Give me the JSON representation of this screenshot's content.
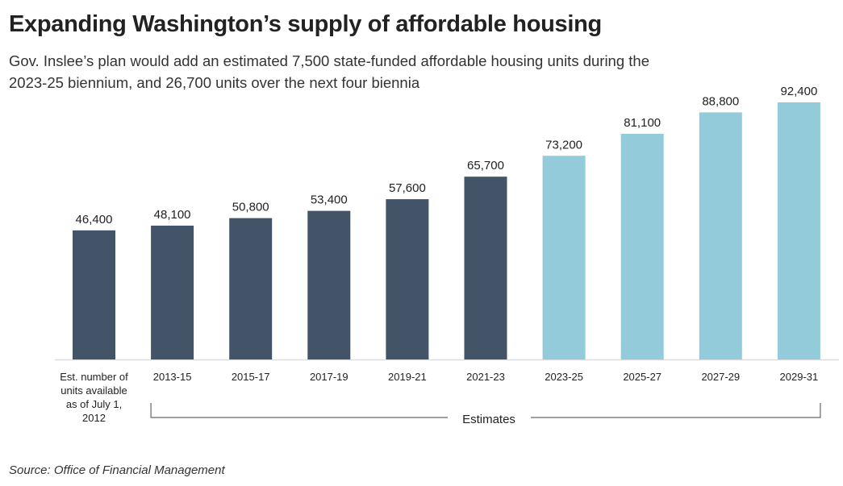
{
  "chart_data": {
    "type": "bar",
    "title": "Expanding Washington’s supply of affordable housing",
    "subtitle": "Gov. Inslee’s plan would add an estimated 7,500 state-funded affordable housing units during the 2023-25 biennium, and 26,700 units over the next four biennia",
    "categories": [
      "Est. number of units available as of July 1, 2012",
      "2013-15",
      "2015-17",
      "2017-19",
      "2019-21",
      "2021-23",
      "2023-25",
      "2025-27",
      "2027-29",
      "2029-31"
    ],
    "values": [
      46400,
      48100,
      50800,
      53400,
      57600,
      65700,
      73200,
      81100,
      88800,
      92400
    ],
    "data_labels": [
      "46,400",
      "48,100",
      "50,800",
      "53,400",
      "57,600",
      "65,700",
      "73,200",
      "81,100",
      "88,800",
      "92,400"
    ],
    "estimate": [
      false,
      false,
      false,
      false,
      false,
      false,
      true,
      true,
      true,
      true
    ],
    "bracket_label": "Estimates",
    "ylim": [
      0,
      92400
    ],
    "grid": false,
    "colors": {
      "actual": "#435368",
      "estimate": "#93cbdb"
    },
    "source": "Source: Office of Financial Management"
  }
}
